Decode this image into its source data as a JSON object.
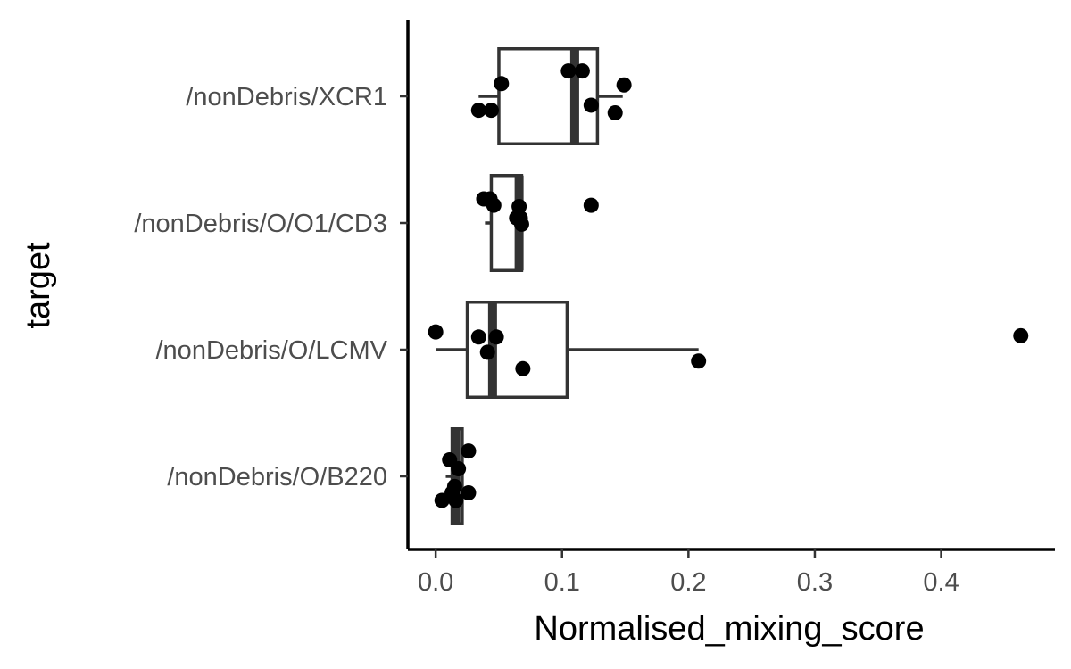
{
  "chart_data": {
    "type": "boxplot",
    "orientation": "horizontal",
    "xlabel": "Normalised_mixing_score",
    "ylabel": "target",
    "xlim": [
      -0.022,
      0.49
    ],
    "x_ticks": [
      "0.0",
      "0.1",
      "0.2",
      "0.3",
      "0.4"
    ],
    "x_tick_values": [
      0.0,
      0.1,
      0.2,
      0.3,
      0.4
    ],
    "grid": false,
    "categories": [
      "/nonDebris/XCR1",
      "/nonDebris/O/O1/CD3",
      "/nonDebris/O/LCMV",
      "/nonDebris/O/B220"
    ],
    "boxes": [
      {
        "category": "/nonDebris/XCR1",
        "whisker_low": 0.034,
        "q1": 0.05,
        "median": 0.11,
        "q3": 0.128,
        "whisker_high": 0.148,
        "points": [
          {
            "x": 0.034,
            "jitter": 0.11
          },
          {
            "x": 0.044,
            "jitter": 0.11
          },
          {
            "x": 0.052,
            "jitter": -0.1
          },
          {
            "x": 0.105,
            "jitter": -0.2
          },
          {
            "x": 0.116,
            "jitter": -0.2
          },
          {
            "x": 0.123,
            "jitter": 0.07
          },
          {
            "x": 0.142,
            "jitter": 0.13
          },
          {
            "x": 0.149,
            "jitter": -0.09
          }
        ]
      },
      {
        "category": "/nonDebris/O/O1/CD3",
        "whisker_low": 0.039,
        "q1": 0.044,
        "median": 0.066,
        "q3": 0.068,
        "whisker_high": 0.068,
        "points": [
          {
            "x": 0.038,
            "jitter": -0.19
          },
          {
            "x": 0.043,
            "jitter": -0.19
          },
          {
            "x": 0.046,
            "jitter": -0.14
          },
          {
            "x": 0.066,
            "jitter": -0.13
          },
          {
            "x": 0.064,
            "jitter": -0.04
          },
          {
            "x": 0.067,
            "jitter": -0.04
          },
          {
            "x": 0.068,
            "jitter": 0.01
          },
          {
            "x": 0.123,
            "jitter": -0.14
          }
        ]
      },
      {
        "category": "/nonDebris/O/LCMV",
        "whisker_low": 0.0,
        "q1": 0.025,
        "median": 0.045,
        "q3": 0.104,
        "whisker_high": 0.208,
        "points": [
          {
            "x": 0.0,
            "jitter": -0.14
          },
          {
            "x": 0.034,
            "jitter": -0.1
          },
          {
            "x": 0.048,
            "jitter": -0.1
          },
          {
            "x": 0.041,
            "jitter": 0.02
          },
          {
            "x": 0.069,
            "jitter": 0.15
          },
          {
            "x": 0.208,
            "jitter": 0.09
          },
          {
            "x": 0.463,
            "jitter": -0.11
          }
        ]
      },
      {
        "category": "/nonDebris/O/B220",
        "whisker_low": 0.008,
        "q1": 0.013,
        "median": 0.016,
        "q3": 0.021,
        "whisker_high": 0.021,
        "points": [
          {
            "x": 0.026,
            "jitter": -0.2
          },
          {
            "x": 0.011,
            "jitter": -0.13
          },
          {
            "x": 0.018,
            "jitter": -0.06
          },
          {
            "x": 0.015,
            "jitter": 0.08
          },
          {
            "x": 0.026,
            "jitter": 0.13
          },
          {
            "x": 0.013,
            "jitter": 0.13
          },
          {
            "x": 0.005,
            "jitter": 0.19
          },
          {
            "x": 0.016,
            "jitter": 0.19
          }
        ]
      }
    ]
  }
}
